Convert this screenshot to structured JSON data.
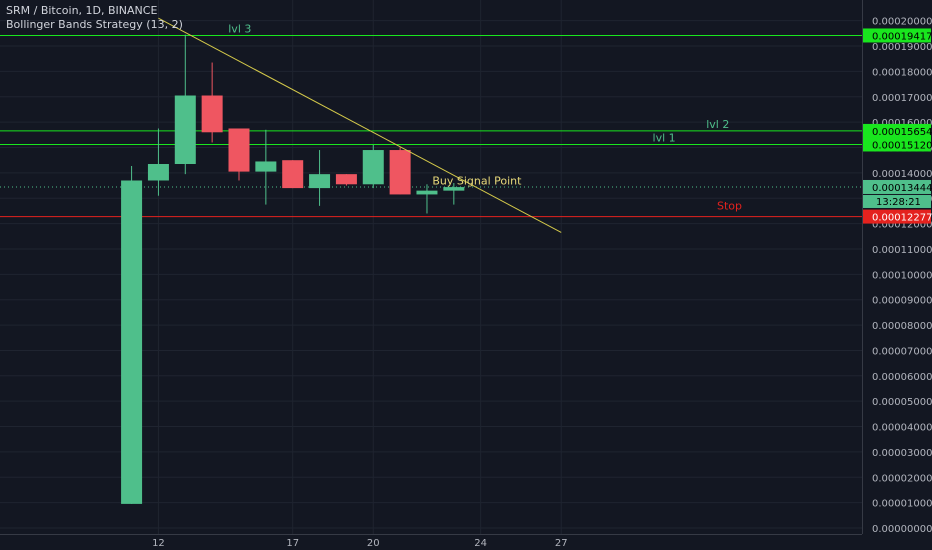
{
  "header": {
    "symbol_line": "SRM / Bitcoin, 1D, BINANCE",
    "indicator_line": "Bollinger Bands Strategy (13, 2)"
  },
  "colors": {
    "background": "#131722",
    "up": "#4fbf8b",
    "down": "#ef5661",
    "level": "#19e61e",
    "stop": "#e4221e",
    "trendline": "#d4c94a",
    "grid": "#1f2430",
    "axis_text": "#b2b5be",
    "current_price_line": "#4fbf8b"
  },
  "chart_data": {
    "type": "candlestick",
    "title": "SRM / Bitcoin, 1D, BINANCE",
    "ylim": [
      0,
      0.000205
    ],
    "y_ticks": [
      "0.00020000",
      "0.00019000",
      "0.00018000",
      "0.00017000",
      "0.00016000",
      "0.00015000",
      "0.00014000",
      "0.00013000",
      "0.00012000",
      "0.00011000",
      "0.00010000",
      "0.00009000",
      "0.00008000",
      "0.00007000",
      "0.00006000",
      "0.00005000",
      "0.00004000",
      "0.00003000",
      "0.00002000",
      "0.00001000",
      "0.00000000"
    ],
    "y_tick_values": [
      0.0002,
      0.00019,
      0.00018,
      0.00017,
      0.00016,
      0.00015,
      0.00014,
      0.00013,
      0.00012,
      0.00011,
      0.0001,
      9e-05,
      8e-05,
      7e-05,
      6e-05,
      5e-05,
      4e-05,
      3e-05,
      2e-05,
      1e-05,
      0.0
    ],
    "x_ticks": [
      {
        "label": "12",
        "day": 12
      },
      {
        "label": "17",
        "day": 17
      },
      {
        "label": "20",
        "day": 20
      },
      {
        "label": "24",
        "day": 24
      },
      {
        "label": "27",
        "day": 27
      }
    ],
    "x_range_days": [
      6.1,
      38.2
    ],
    "candles": [
      {
        "day": 11,
        "open": 9.5e-06,
        "high": 0.0001427,
        "low": 9.5e-06,
        "close": 0.000137
      },
      {
        "day": 12,
        "open": 0.000137,
        "high": 0.0001575,
        "low": 0.000131,
        "close": 0.0001435
      },
      {
        "day": 13,
        "open": 0.0001435,
        "high": 0.0001945,
        "low": 0.0001395,
        "close": 0.0001705
      },
      {
        "day": 14,
        "open": 0.0001705,
        "high": 0.0001835,
        "low": 0.000152,
        "close": 0.000156
      },
      {
        "day": 15,
        "open": 0.0001575,
        "high": 0.0001575,
        "low": 0.000137,
        "close": 0.0001405
      },
      {
        "day": 16,
        "open": 0.0001405,
        "high": 0.000157,
        "low": 0.0001275,
        "close": 0.0001445
      },
      {
        "day": 17,
        "open": 0.000145,
        "high": 0.000145,
        "low": 0.000134,
        "close": 0.000134
      },
      {
        "day": 18,
        "open": 0.000134,
        "high": 0.000149,
        "low": 0.000127,
        "close": 0.0001395
      },
      {
        "day": 19,
        "open": 0.0001395,
        "high": 0.0001395,
        "low": 0.000135,
        "close": 0.0001355
      },
      {
        "day": 20,
        "open": 0.0001355,
        "high": 0.000151,
        "low": 0.000134,
        "close": 0.000149
      },
      {
        "day": 21,
        "open": 0.000149,
        "high": 0.00015,
        "low": 0.0001315,
        "close": 0.0001315
      },
      {
        "day": 22,
        "open": 0.0001315,
        "high": 0.0001355,
        "low": 0.000124,
        "close": 0.000133
      },
      {
        "day": 23,
        "open": 0.000133,
        "high": 0.000136,
        "low": 0.0001275,
        "close": 0.0001344
      }
    ],
    "levels": [
      {
        "label": "lvl 3",
        "value": 0.00019417,
        "price_label": "0.00019417",
        "kind": "target"
      },
      {
        "label": "lvl 2",
        "value": 0.00015654,
        "price_label": "0.00015654",
        "kind": "target"
      },
      {
        "label": "lvl 1",
        "value": 0.0001512,
        "price_label": "0.00015120",
        "kind": "target"
      },
      {
        "label": "Stop",
        "value": 0.00012277,
        "price_label": "0.00012277",
        "kind": "stop"
      }
    ],
    "current_price": {
      "value": 0.00013444,
      "label": "0.00013444",
      "countdown": "13:28:21"
    },
    "trendline": {
      "start": {
        "day": 12,
        "value": 0.000201
      },
      "end": {
        "day": 27,
        "value": 0.0001165
      }
    },
    "annotations": [
      {
        "text": "Buy Signal Point",
        "day": 22.2,
        "value": 0.0001355
      }
    ],
    "grid": true
  }
}
